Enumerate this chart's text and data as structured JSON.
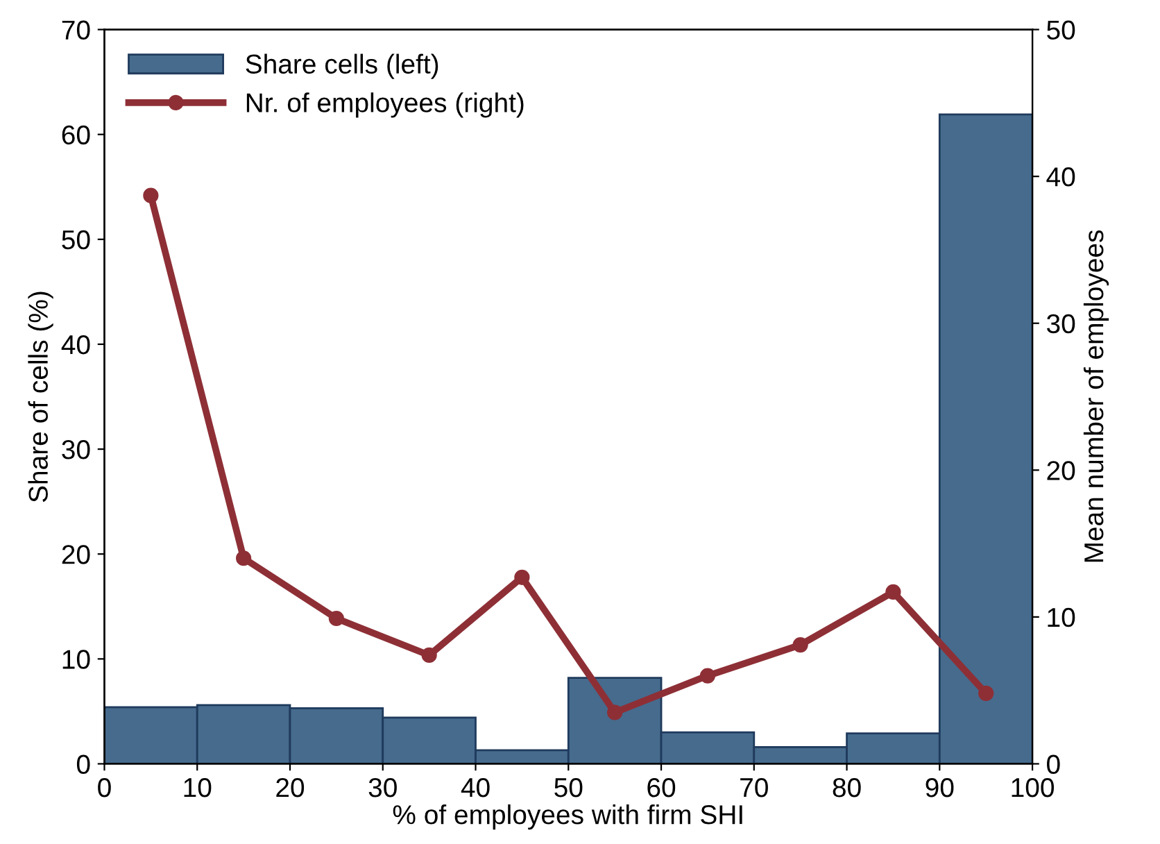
{
  "chart_data": {
    "type": "histogram",
    "xlabel": "% of employees with firm SHI",
    "ylabel": "Share of cells (%)",
    "y2label": "Mean number of employees",
    "bins": [
      0,
      10,
      20,
      30,
      40,
      50,
      60,
      70,
      80,
      90,
      100
    ],
    "series": [
      {
        "name": "Share cells (left)",
        "color": "#466b8d",
        "values": [
          5.4,
          5.6,
          5.3,
          4.4,
          1.3,
          8.2,
          3.0,
          1.6,
          2.9,
          61.9
        ]
      },
      {
        "name": "Nr. of employees (right)",
        "type": "line",
        "axis": "y2",
        "color": "#8e2f36",
        "x": [
          5,
          15,
          25,
          35,
          45,
          55,
          65,
          75,
          85,
          95
        ],
        "values": [
          38.7,
          14.0,
          9.9,
          7.4,
          12.7,
          3.5,
          6.0,
          8.1,
          11.7,
          4.8
        ]
      }
    ],
    "xlim": [
      0,
      100
    ],
    "xticks": [
      0,
      10,
      20,
      30,
      40,
      50,
      60,
      70,
      80,
      90,
      100
    ],
    "ylim": [
      0,
      70
    ],
    "yticks": [
      0,
      10,
      20,
      30,
      40,
      50,
      60,
      70
    ],
    "y2lim": [
      0,
      50
    ],
    "y2ticks": [
      0,
      10,
      20,
      30,
      40,
      50
    ],
    "grid": false,
    "legend": "top left",
    "marker": "circle",
    "line_style": "solid"
  }
}
